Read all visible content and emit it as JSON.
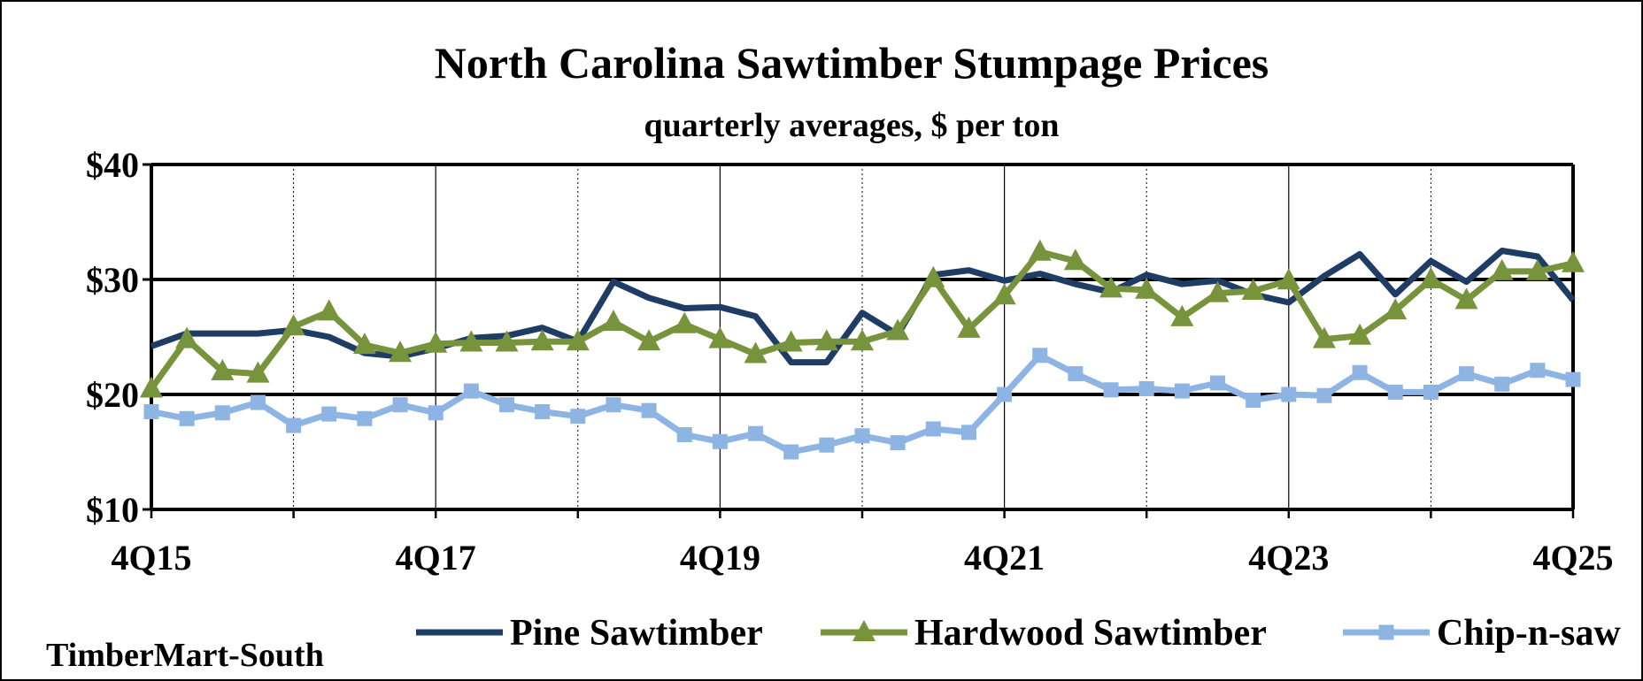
{
  "chart_data": {
    "type": "line",
    "title": "North Carolina Sawtimber Stumpage Prices",
    "subtitle": "quarterly averages, $ per ton",
    "source": "TimberMart-South",
    "ylim": [
      10,
      40
    ],
    "yticks": [
      "$10",
      "$20",
      "$30",
      "$40"
    ],
    "ytick_values": [
      10,
      20,
      30,
      40
    ],
    "xtick_labels": [
      "4Q15",
      "4Q17",
      "4Q19",
      "4Q21",
      "4Q23",
      "4Q25"
    ],
    "xtick_indices": [
      0,
      8,
      16,
      24,
      32,
      40
    ],
    "minor_gridline_indices": [
      4,
      12,
      20,
      28,
      36
    ],
    "major_gridlines_y": [
      20,
      30
    ],
    "legend_position": "bottom",
    "colors": {
      "pine": "#1f3c64",
      "hardwood": "#77933c",
      "chipnsaw": "#8eb4e3"
    },
    "x": [
      "4Q15",
      "1Q16",
      "2Q16",
      "3Q16",
      "4Q16",
      "1Q17",
      "2Q17",
      "3Q17",
      "4Q17",
      "1Q18",
      "2Q18",
      "3Q18",
      "4Q18",
      "1Q19",
      "2Q19",
      "3Q19",
      "4Q19",
      "1Q20",
      "2Q20",
      "3Q20",
      "4Q20",
      "1Q21",
      "2Q21",
      "3Q21",
      "4Q21",
      "1Q22",
      "2Q22",
      "3Q22",
      "4Q22",
      "1Q23",
      "2Q23",
      "3Q23",
      "4Q23",
      "1Q24",
      "2Q24",
      "3Q24",
      "4Q24",
      "1Q25",
      "2Q25",
      "3Q25",
      "4Q25"
    ],
    "series": [
      {
        "name": "Pine Sawtimber",
        "key": "pine",
        "marker": "none",
        "values": [
          24.2,
          25.3,
          25.3,
          25.3,
          25.6,
          25.0,
          23.6,
          23.3,
          24.0,
          24.9,
          25.1,
          25.8,
          24.6,
          29.8,
          28.4,
          27.5,
          27.6,
          26.8,
          22.8,
          22.8,
          27.1,
          25.2,
          30.4,
          30.8,
          29.9,
          30.5,
          29.6,
          28.9,
          30.4,
          29.6,
          29.9,
          28.7,
          28.0,
          30.3,
          32.2,
          28.7,
          31.6,
          29.8,
          32.5,
          32.0,
          28.2
        ]
      },
      {
        "name": "Hardwood Sawtimber",
        "key": "hardwood",
        "marker": "triangle",
        "values": [
          20.5,
          24.8,
          22.0,
          21.8,
          25.9,
          27.2,
          24.3,
          23.6,
          24.4,
          24.5,
          24.5,
          24.6,
          24.6,
          26.3,
          24.6,
          26.1,
          24.8,
          23.5,
          24.5,
          24.6,
          24.6,
          25.5,
          30.1,
          25.7,
          28.6,
          32.4,
          31.6,
          29.2,
          29.1,
          26.7,
          28.8,
          29.0,
          29.9,
          24.8,
          25.1,
          27.3,
          30.0,
          28.2,
          30.7,
          30.7,
          31.4
        ]
      },
      {
        "name": "Chip-n-saw",
        "key": "chipnsaw",
        "marker": "square",
        "values": [
          18.5,
          17.9,
          18.4,
          19.3,
          17.3,
          18.3,
          17.9,
          19.1,
          18.4,
          20.3,
          19.1,
          18.5,
          18.1,
          19.1,
          18.6,
          16.5,
          15.9,
          16.6,
          15.0,
          15.6,
          16.4,
          15.8,
          17.0,
          16.7,
          20.0,
          23.4,
          21.8,
          20.4,
          20.5,
          20.3,
          21.0,
          19.5,
          20.0,
          19.9,
          21.9,
          20.2,
          20.2,
          21.8,
          20.9,
          22.1,
          21.3
        ]
      }
    ]
  }
}
